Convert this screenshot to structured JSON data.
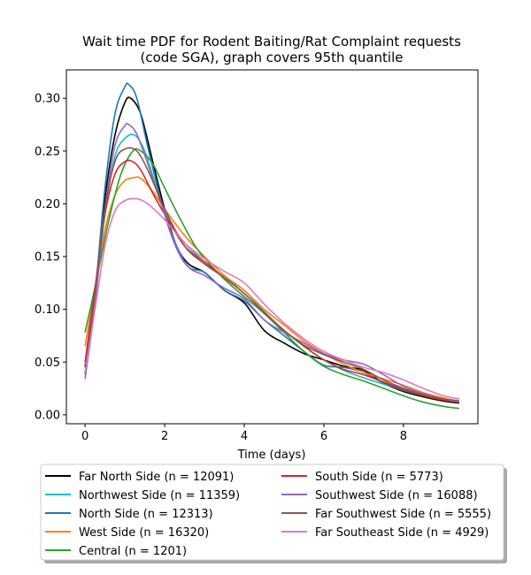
{
  "chart_data": {
    "type": "line",
    "title": [
      "Wait time PDF for Rodent Baiting/Rat Complaint  requests",
      "(code SGA), graph covers 95th quantile"
    ],
    "xlabel": "Time (days)",
    "ylabel": "",
    "xlim": [
      -0.47,
      9.87
    ],
    "ylim": [
      -0.0085,
      0.327
    ],
    "xticks": [
      0,
      2,
      4,
      6,
      8
    ],
    "xtick_labels": [
      "0",
      "2",
      "4",
      "6",
      "8"
    ],
    "yticks": [
      0.0,
      0.05,
      0.1,
      0.15,
      0.2,
      0.25,
      0.3
    ],
    "ytick_labels": [
      "0.00",
      "0.05",
      "0.10",
      "0.15",
      "0.20",
      "0.25",
      "0.30"
    ],
    "grid": false,
    "legend_position": "below plot, two columns",
    "series": [
      {
        "name": "Far North Side (n = 12091)",
        "color": "#000000",
        "x": [
          0,
          0.25,
          0.5,
          0.75,
          1.0,
          1.15,
          1.4,
          1.7,
          2.0,
          2.3,
          2.6,
          3.0,
          3.5,
          4.0,
          4.5,
          5.0,
          5.5,
          6.0,
          6.5,
          7.0,
          7.5,
          8.0,
          8.5,
          9.0,
          9.4
        ],
        "y": [
          0.045,
          0.115,
          0.205,
          0.265,
          0.296,
          0.3,
          0.285,
          0.24,
          0.195,
          0.16,
          0.143,
          0.135,
          0.118,
          0.106,
          0.08,
          0.068,
          0.058,
          0.052,
          0.046,
          0.042,
          0.03,
          0.022,
          0.017,
          0.013,
          0.011
        ]
      },
      {
        "name": "Northwest Side (n = 11359)",
        "color": "#17becf",
        "x": [
          0,
          0.25,
          0.5,
          0.75,
          1.0,
          1.25,
          1.5,
          1.8,
          2.1,
          2.5,
          3.0,
          3.5,
          4.0,
          4.5,
          5.0,
          5.5,
          6.0,
          6.5,
          7.0,
          7.5,
          8.0,
          8.5,
          9.0,
          9.4
        ],
        "y": [
          0.048,
          0.11,
          0.19,
          0.245,
          0.262,
          0.265,
          0.25,
          0.215,
          0.185,
          0.163,
          0.145,
          0.13,
          0.118,
          0.098,
          0.08,
          0.065,
          0.052,
          0.042,
          0.035,
          0.029,
          0.024,
          0.02,
          0.015,
          0.013
        ]
      },
      {
        "name": "North Side (n = 12313)",
        "color": "#1f77b4",
        "x": [
          0,
          0.25,
          0.5,
          0.75,
          1.0,
          1.1,
          1.3,
          1.6,
          2.0,
          2.3,
          2.6,
          3.0,
          3.5,
          4.0,
          4.5,
          5.0,
          5.5,
          6.0,
          6.5,
          7.0,
          7.5,
          8.0,
          8.5,
          9.0,
          9.4
        ],
        "y": [
          0.038,
          0.115,
          0.215,
          0.285,
          0.311,
          0.313,
          0.3,
          0.25,
          0.19,
          0.158,
          0.14,
          0.135,
          0.118,
          0.108,
          0.09,
          0.075,
          0.06,
          0.047,
          0.045,
          0.04,
          0.03,
          0.023,
          0.018,
          0.014,
          0.012
        ]
      },
      {
        "name": "West Side (n = 16320)",
        "color": "#ff7f0e",
        "x": [
          0,
          0.25,
          0.5,
          0.75,
          1.0,
          1.25,
          1.4,
          1.7,
          2.0,
          2.5,
          3.0,
          3.5,
          4.0,
          4.5,
          5.0,
          5.5,
          6.0,
          6.5,
          7.0,
          7.5,
          8.0,
          8.5,
          9.0,
          9.4
        ],
        "y": [
          0.065,
          0.12,
          0.175,
          0.208,
          0.222,
          0.225,
          0.224,
          0.212,
          0.195,
          0.17,
          0.15,
          0.132,
          0.118,
          0.1,
          0.085,
          0.07,
          0.058,
          0.048,
          0.04,
          0.034,
          0.028,
          0.021,
          0.016,
          0.013
        ]
      },
      {
        "name": "Central (n = 1201)",
        "color": "#2ca02c",
        "x": [
          0,
          0.3,
          0.6,
          0.9,
          1.2,
          1.4,
          1.7,
          2.0,
          2.4,
          2.8,
          3.2,
          3.6,
          4.0,
          4.5,
          5.0,
          5.5,
          6.0,
          6.5,
          7.0,
          7.5,
          8.0,
          8.5,
          9.0,
          9.4
        ],
        "y": [
          0.078,
          0.13,
          0.185,
          0.228,
          0.25,
          0.25,
          0.238,
          0.215,
          0.185,
          0.158,
          0.14,
          0.125,
          0.112,
          0.096,
          0.078,
          0.06,
          0.046,
          0.038,
          0.032,
          0.025,
          0.018,
          0.012,
          0.008,
          0.006
        ]
      },
      {
        "name": "South Side (n = 5773)",
        "color": "#d62728",
        "x": [
          0,
          0.25,
          0.5,
          0.75,
          1.0,
          1.2,
          1.4,
          1.7,
          2.0,
          2.5,
          3.0,
          3.5,
          4.0,
          4.5,
          5.0,
          5.5,
          6.0,
          6.5,
          7.0,
          7.5,
          8.0,
          8.5,
          9.0,
          9.4
        ],
        "y": [
          0.05,
          0.12,
          0.19,
          0.228,
          0.24,
          0.24,
          0.232,
          0.21,
          0.19,
          0.16,
          0.145,
          0.13,
          0.115,
          0.097,
          0.08,
          0.065,
          0.052,
          0.043,
          0.038,
          0.031,
          0.024,
          0.018,
          0.014,
          0.012
        ]
      },
      {
        "name": "Southwest Side (n = 16088)",
        "color": "#9467bd",
        "x": [
          0,
          0.25,
          0.5,
          0.75,
          1.0,
          1.1,
          1.3,
          1.6,
          2.0,
          2.3,
          2.6,
          3.0,
          3.5,
          4.0,
          4.5,
          5.0,
          5.5,
          6.0,
          6.5,
          7.0,
          7.5,
          8.0,
          8.5,
          9.0,
          9.4
        ],
        "y": [
          0.034,
          0.105,
          0.195,
          0.255,
          0.274,
          0.275,
          0.266,
          0.235,
          0.19,
          0.16,
          0.14,
          0.132,
          0.12,
          0.11,
          0.09,
          0.078,
          0.068,
          0.058,
          0.052,
          0.048,
          0.038,
          0.027,
          0.02,
          0.015,
          0.012
        ]
      },
      {
        "name": "Far Southwest Side (n = 5555)",
        "color": "#8c564b",
        "x": [
          0,
          0.25,
          0.5,
          0.75,
          1.0,
          1.3,
          1.6,
          2.0,
          2.5,
          3.0,
          3.5,
          4.0,
          4.5,
          5.0,
          5.5,
          6.0,
          6.5,
          7.0,
          7.5,
          8.0,
          8.5,
          9.0,
          9.4
        ],
        "y": [
          0.04,
          0.115,
          0.195,
          0.24,
          0.252,
          0.25,
          0.23,
          0.195,
          0.16,
          0.143,
          0.13,
          0.115,
          0.097,
          0.08,
          0.066,
          0.057,
          0.05,
          0.043,
          0.033,
          0.025,
          0.019,
          0.015,
          0.013
        ]
      },
      {
        "name": "Far Southeast Side (n = 4929)",
        "color": "#e377c2",
        "x": [
          0,
          0.25,
          0.5,
          0.75,
          1.0,
          1.25,
          1.45,
          1.7,
          2.0,
          2.5,
          3.0,
          3.5,
          4.0,
          4.5,
          5.0,
          5.5,
          6.0,
          6.5,
          7.0,
          7.5,
          8.0,
          8.5,
          9.0,
          9.4
        ],
        "y": [
          0.04,
          0.1,
          0.16,
          0.193,
          0.203,
          0.205,
          0.203,
          0.196,
          0.185,
          0.163,
          0.148,
          0.136,
          0.125,
          0.105,
          0.087,
          0.072,
          0.06,
          0.052,
          0.045,
          0.04,
          0.033,
          0.025,
          0.018,
          0.015
        ]
      }
    ]
  }
}
